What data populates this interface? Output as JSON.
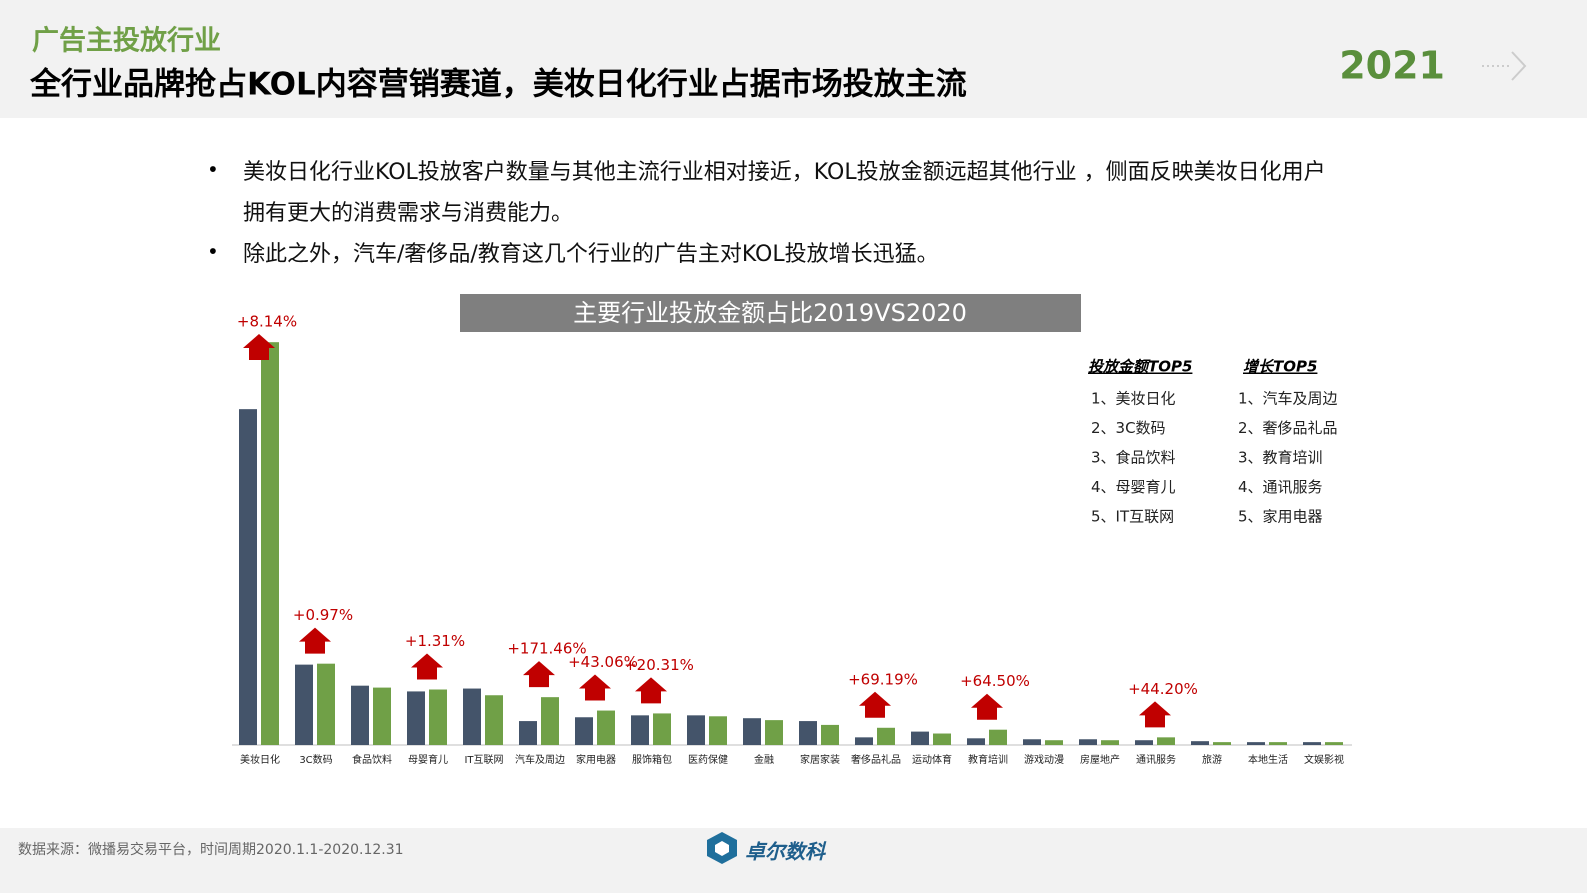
{
  "header": {
    "section": "广告主投放行业",
    "title": "全行业品牌抢占KOL内容营销赛道，美妆日化行业占据市场投放主流",
    "year": "2021"
  },
  "bullets": [
    "美妆日化行业KOL投放客户数量与其他主流行业相对接近，KOL投放金额远超其他行业 ，侧面反映美妆日化用户拥有更大的消费需求与消费能力。",
    "除此之外，汽车/奢侈品/教育这几个行业的广告主对KOL投放增长迅猛。"
  ],
  "chart_data": {
    "type": "bar",
    "title": "主要行业投放金额占比2019VS2020",
    "categories": [
      "美妆日化",
      "3C数码",
      "食品饮料",
      "母婴育儿",
      "IT互联网",
      "汽车及周边",
      "家用电器",
      "服饰箱包",
      "医药保健",
      "金融",
      "家居家装",
      "奢侈品礼品",
      "运动体育",
      "教育培训",
      "游戏动漫",
      "房屋地产",
      "通讯服务",
      "旅游",
      "本地生活",
      "文娱影视"
    ],
    "series": [
      {
        "color": "#44546a",
        "values": [
          35.1,
          8.4,
          6.2,
          5.6,
          5.9,
          2.5,
          2.9,
          3.1,
          3.1,
          2.8,
          2.5,
          0.8,
          1.4,
          0.7,
          0.6,
          0.6,
          0.5,
          0.4,
          0.3,
          0.3
        ]
      },
      {
        "color": "#70a047",
        "values": [
          42.1,
          8.5,
          6.0,
          5.8,
          5.2,
          5.0,
          3.6,
          3.3,
          3.0,
          2.6,
          2.1,
          1.8,
          1.2,
          1.6,
          0.5,
          0.5,
          0.8,
          0.3,
          0.3,
          0.3
        ]
      }
    ],
    "growth_labels": [
      "+8.14%",
      "+0.97%",
      null,
      "+1.31%",
      null,
      "+171.46%",
      "+43.06%",
      "+20.31%",
      null,
      null,
      null,
      "+69.19%",
      null,
      "+64.50%",
      null,
      null,
      "+44.20%",
      null,
      null,
      null
    ],
    "ylim": [
      0,
      44
    ]
  },
  "top5": [
    {
      "title": "投放金额TOP5",
      "items": [
        "1、美妆日化",
        "2、3C数码",
        "3、食品饮料",
        "4、母婴育儿",
        "5、IT互联网"
      ]
    },
    {
      "title": "增长TOP5",
      "items": [
        "1、汽车及周边",
        "2、奢侈品礼品",
        "3、教育培训",
        "4、通讯服务",
        "5、家用电器"
      ]
    }
  ],
  "footer": {
    "source": "数据来源：微播易交易平台，时间周期2020.1.1-2020.12.31",
    "brand": "卓尔数科"
  }
}
